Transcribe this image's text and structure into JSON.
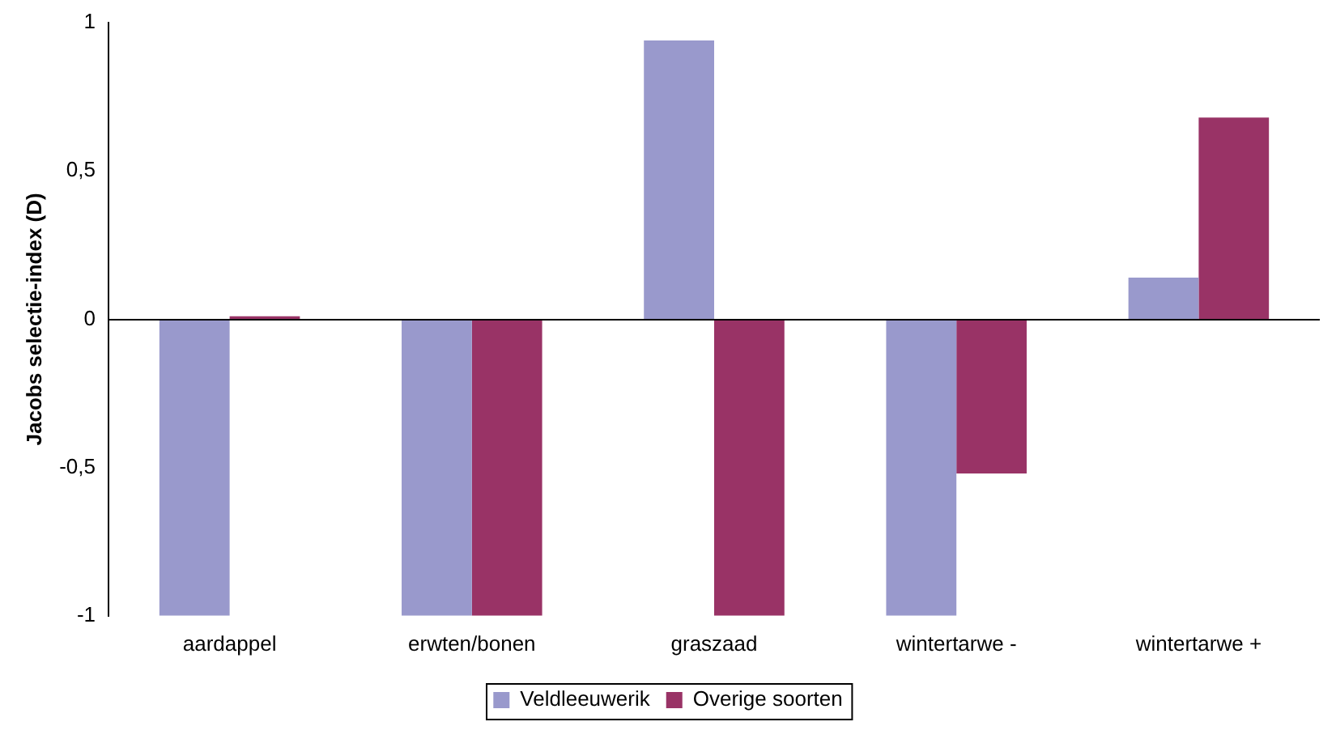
{
  "chart_data": {
    "type": "bar",
    "ylabel": "Jacobs selectie-index (D)",
    "categories": [
      "aardappel",
      "erwten/bonen",
      "graszaad",
      "wintertarwe -",
      "wintertarwe +"
    ],
    "series": [
      {
        "name": "Veldleeuwerik",
        "color": "#9999cc",
        "values": [
          -1,
          -1,
          0.94,
          -1,
          0.14
        ]
      },
      {
        "name": "Overige soorten",
        "color": "#993366",
        "values": [
          0.01,
          -1,
          -1,
          -0.52,
          0.68
        ]
      }
    ],
    "ylim": [
      -1,
      1
    ],
    "yticks": [
      -1,
      {
        "value": -0.5,
        "label": "-0,5"
      },
      0,
      {
        "value": 0.5,
        "label": "0,5"
      },
      1
    ],
    "ref_lines": [
      {
        "axis": "y",
        "value": 0,
        "color": "#000000"
      }
    ],
    "grid": false,
    "legend": "bottom"
  }
}
